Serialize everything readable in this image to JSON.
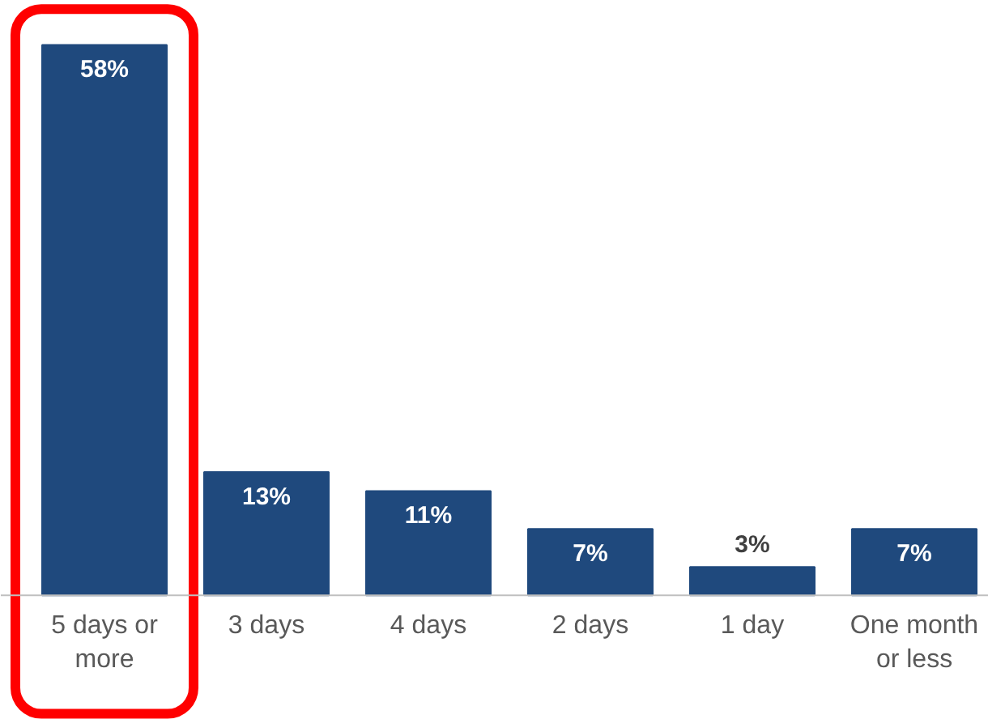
{
  "chart_data": {
    "type": "bar",
    "categories": [
      "5 days or more",
      "3 days",
      "4 days",
      "2 days",
      "1 day",
      "One month or less"
    ],
    "values": [
      58,
      13,
      11,
      7,
      3,
      7
    ],
    "value_labels": [
      "58%",
      "13%",
      "11%",
      "7%",
      "3%",
      "7%"
    ],
    "color": "#1f497d",
    "grid": false
  }
}
